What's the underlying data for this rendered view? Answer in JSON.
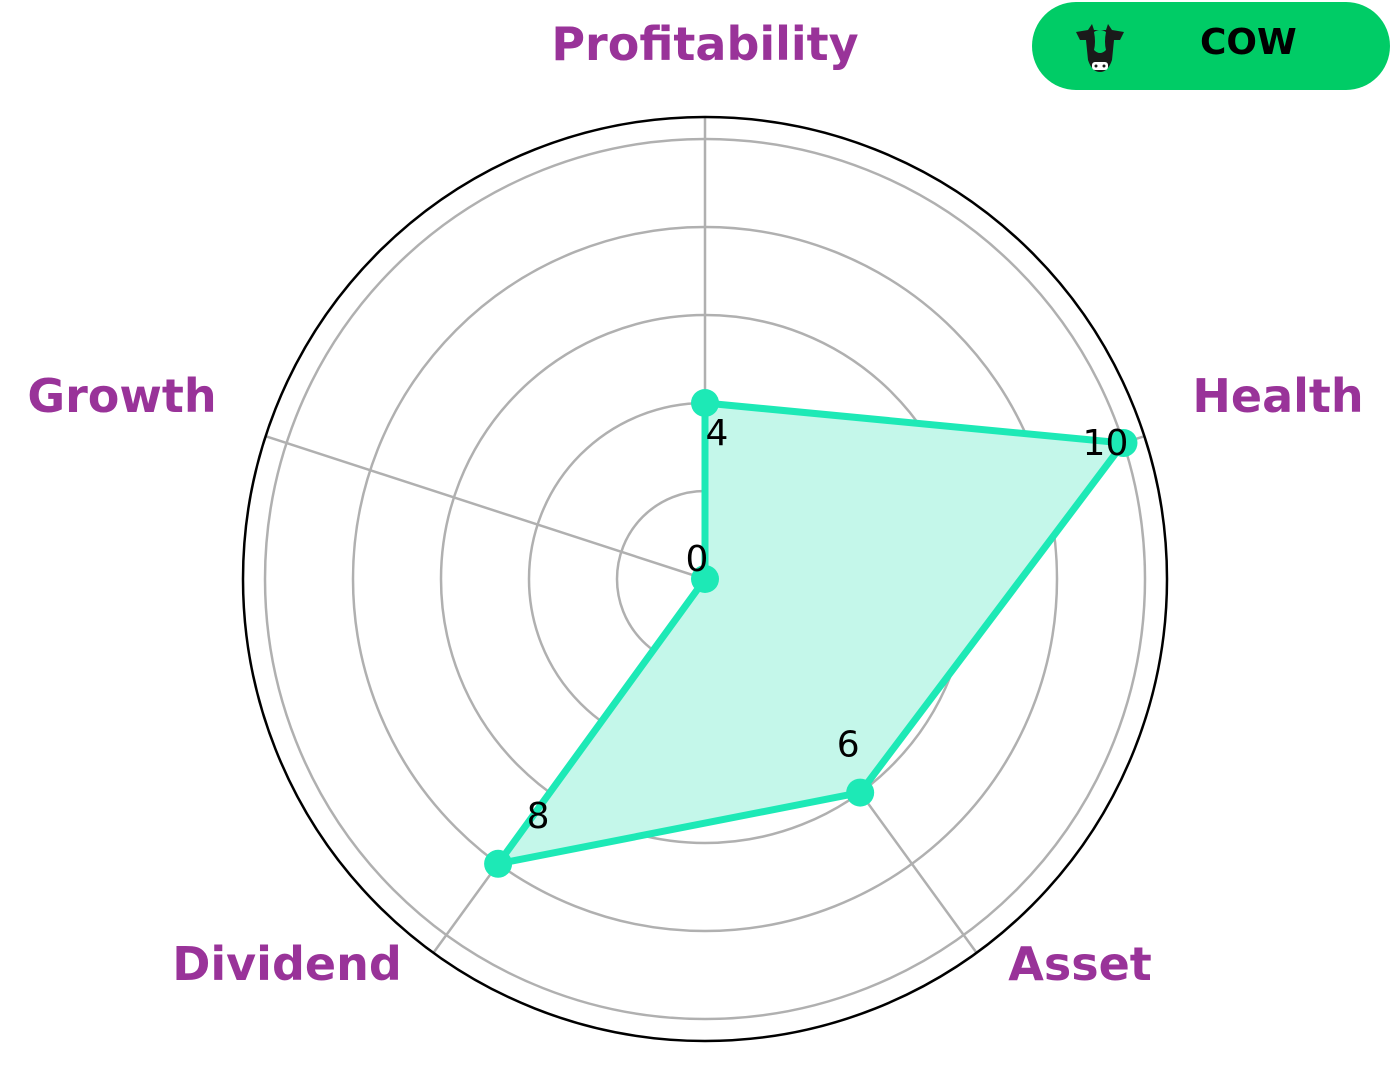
{
  "chart_data": {
    "type": "radar",
    "categories": [
      "Profitability",
      "Health",
      "Asset",
      "Dividend",
      "Growth"
    ],
    "values": [
      4,
      10,
      6,
      8,
      0
    ],
    "value_labels": [
      "4",
      "10",
      "6",
      "8",
      "0"
    ],
    "rlim": [
      0,
      10.5
    ],
    "grid_rings": [
      2,
      4,
      6,
      8,
      10
    ],
    "grid": true,
    "colors": {
      "series": "#1de9b6",
      "fill": "#c4f7ea",
      "labels": "#993399",
      "grid": "#b0b0b0"
    }
  },
  "badge": {
    "label": "COW",
    "icon": "cow-icon",
    "color": "#00cc66"
  }
}
